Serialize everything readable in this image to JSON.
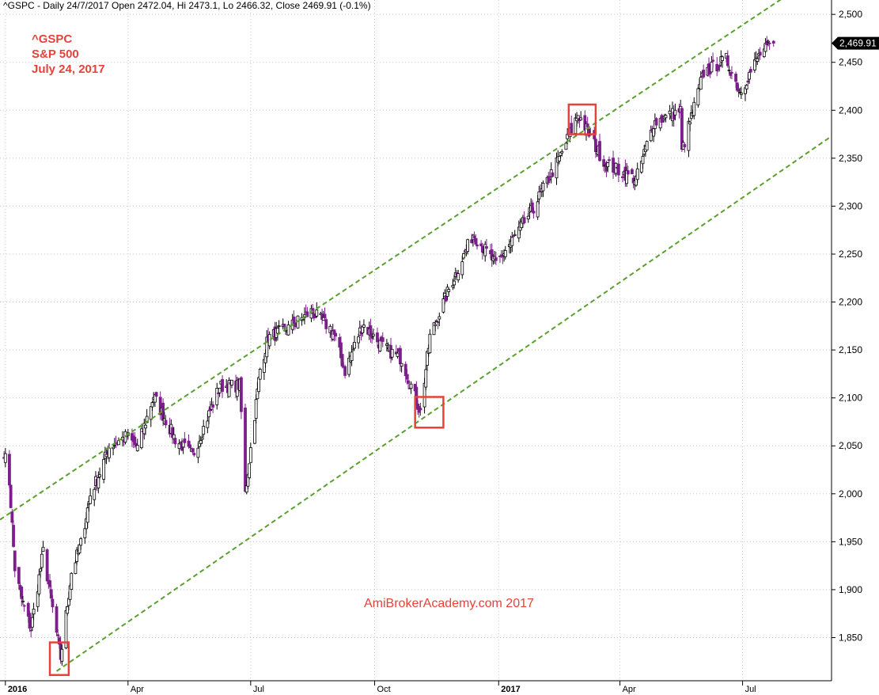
{
  "header": {
    "text": "^GSPC - Daily 24/7/2017 Open 2472.04, Hi 2473.1, Lo 2466.32, Close 2469.91 (-0.1%)"
  },
  "annotation": {
    "line1": "^GSPC",
    "line2": "S&P 500",
    "line3": "July 24, 2017",
    "color": "#e8413a"
  },
  "watermark": {
    "text": "AmiBrokerAcademy.com  2017",
    "color": "#e8413a"
  },
  "chart_data": {
    "type": "candlestick",
    "symbol": "^GSPC",
    "title": "^GSPC - Daily 24/7/2017",
    "last_open": 2472.04,
    "last_high": 2473.1,
    "last_low": 2466.32,
    "last_close": 2469.91,
    "change_pct": -0.1,
    "last_value_label": "2,469.91",
    "ylim": [
      1805,
      2515
    ],
    "xlim": [
      "2015-12-28",
      "2017-09-05"
    ],
    "y_ticks": [
      1850,
      1900,
      1950,
      2000,
      2050,
      2100,
      2150,
      2200,
      2250,
      2300,
      2350,
      2400,
      2450,
      2500
    ],
    "y_tick_labels": [
      "1,850",
      "1,900",
      "1,950",
      "2,000",
      "2,050",
      "2,100",
      "2,150",
      "2,200",
      "2,250",
      "2,300",
      "2,350",
      "2,400",
      "2,450",
      "2,500"
    ],
    "x_ticks": [
      {
        "date": "2016-01-01",
        "label": "2016",
        "bold": true
      },
      {
        "date": "2016-04-01",
        "label": "Apr",
        "bold": false
      },
      {
        "date": "2016-07-01",
        "label": "Jul",
        "bold": false
      },
      {
        "date": "2016-10-01",
        "label": "Oct",
        "bold": false
      },
      {
        "date": "2017-01-01",
        "label": "2017",
        "bold": true
      },
      {
        "date": "2017-04-01",
        "label": "Apr",
        "bold": false
      },
      {
        "date": "2017-07-01",
        "label": "Jul",
        "bold": false
      }
    ],
    "grid": true,
    "series": [
      {
        "type": "candlestick",
        "up_color": "#ffffff",
        "down_color": "#7b1f8a",
        "outline": "#000000",
        "closes": [
          [
            "2015-12-31",
            2044
          ],
          [
            "2016-01-04",
            2012
          ],
          [
            "2016-01-08",
            1922
          ],
          [
            "2016-01-13",
            1890
          ],
          [
            "2016-01-20",
            1859
          ],
          [
            "2016-01-29",
            1940
          ],
          [
            "2016-02-05",
            1880
          ],
          [
            "2016-02-11",
            1829
          ],
          [
            "2016-02-19",
            1918
          ],
          [
            "2016-02-26",
            1948
          ],
          [
            "2016-03-04",
            1999
          ],
          [
            "2016-03-11",
            2022
          ],
          [
            "2016-03-18",
            2049
          ],
          [
            "2016-03-31",
            2060
          ],
          [
            "2016-04-08",
            2048
          ],
          [
            "2016-04-20",
            2102
          ],
          [
            "2016-05-06",
            2057
          ],
          [
            "2016-05-19",
            2040
          ],
          [
            "2016-06-08",
            2112
          ],
          [
            "2016-06-23",
            2113
          ],
          [
            "2016-06-27",
            2000
          ],
          [
            "2016-07-08",
            2130
          ],
          [
            "2016-07-14",
            2163
          ],
          [
            "2016-07-29",
            2173
          ],
          [
            "2016-08-15",
            2190
          ],
          [
            "2016-08-31",
            2170
          ],
          [
            "2016-09-09",
            2128
          ],
          [
            "2016-09-22",
            2177
          ],
          [
            "2016-10-07",
            2153
          ],
          [
            "2016-10-21",
            2141
          ],
          [
            "2016-11-04",
            2085
          ],
          [
            "2016-11-11",
            2164
          ],
          [
            "2016-11-25",
            2213
          ],
          [
            "2016-12-13",
            2271
          ],
          [
            "2016-12-30",
            2239
          ],
          [
            "2017-01-26",
            2296
          ],
          [
            "2017-02-15",
            2350
          ],
          [
            "2017-03-01",
            2396
          ],
          [
            "2017-03-21",
            2344
          ],
          [
            "2017-04-13",
            2328
          ],
          [
            "2017-04-26",
            2387
          ],
          [
            "2017-05-16",
            2400
          ],
          [
            "2017-05-17",
            2357
          ],
          [
            "2017-06-02",
            2439
          ],
          [
            "2017-06-19",
            2453
          ],
          [
            "2017-06-29",
            2419
          ],
          [
            "2017-07-14",
            2459
          ],
          [
            "2017-07-24",
            2469.91
          ]
        ]
      }
    ],
    "channel_lines": [
      {
        "name": "upper",
        "color": "#5aa02c",
        "style": "dashed",
        "points": [
          [
            "2015-12-28",
            1973
          ],
          [
            "2017-08-01",
            2518
          ]
        ]
      },
      {
        "name": "lower",
        "color": "#5aa02c",
        "style": "dashed",
        "points": [
          [
            "2016-02-08",
            1815
          ],
          [
            "2017-09-04",
            2372
          ]
        ]
      }
    ],
    "highlight_boxes": [
      {
        "name": "feb-2016-low",
        "color": "#e8413a",
        "from": "2016-02-03",
        "to": "2016-02-17",
        "low": 1811,
        "high": 1845
      },
      {
        "name": "nov-2016-low",
        "color": "#e8413a",
        "from": "2016-10-31",
        "to": "2016-11-21",
        "low": 2069,
        "high": 2101
      },
      {
        "name": "mar-2017-high",
        "color": "#e8413a",
        "from": "2017-02-22",
        "to": "2017-03-14",
        "low": 2375,
        "high": 2406
      }
    ]
  }
}
